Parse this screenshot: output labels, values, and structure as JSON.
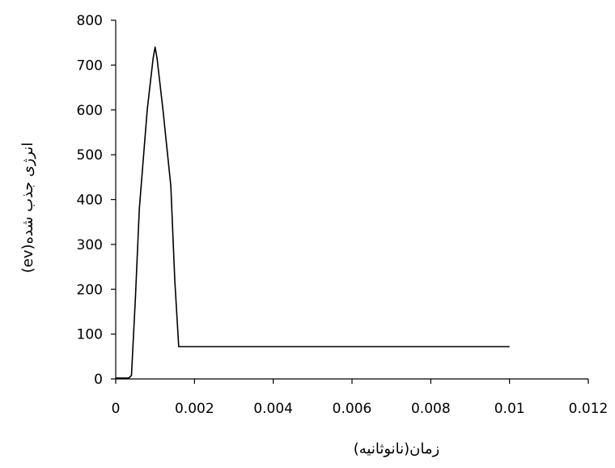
{
  "chart_data": {
    "type": "line",
    "title": "",
    "xlabel": "زمان(نانوثانیه)",
    "ylabel": "انرژی جذب شده(ev)",
    "xlim": [
      0,
      0.012
    ],
    "ylim": [
      0,
      800
    ],
    "x_ticks": [
      0,
      0.002,
      0.004,
      0.006,
      0.008,
      0.01,
      0.012
    ],
    "x_tick_labels": [
      "0",
      "0.002",
      "0.004",
      "0.006",
      "0.008",
      "0.01",
      "0.012"
    ],
    "y_ticks": [
      0,
      100,
      200,
      300,
      400,
      500,
      600,
      700,
      800
    ],
    "y_tick_labels": [
      "0",
      "100",
      "200",
      "300",
      "400",
      "500",
      "600",
      "700",
      "800"
    ],
    "grid": false,
    "series": [
      {
        "color": "#000000",
        "x": [
          0,
          0.0003,
          0.00035,
          0.0004,
          0.0005,
          0.0006,
          0.0008,
          0.00095,
          0.001,
          0.00105,
          0.0012,
          0.0014,
          0.0015,
          0.0016,
          0.0017,
          0.002,
          0.004,
          0.006,
          0.008,
          0.01
        ],
        "y": [
          2,
          2,
          3,
          8,
          180,
          380,
          600,
          715,
          740,
          715,
          600,
          430,
          220,
          72,
          72,
          72,
          72,
          72,
          72,
          72
        ]
      }
    ]
  }
}
